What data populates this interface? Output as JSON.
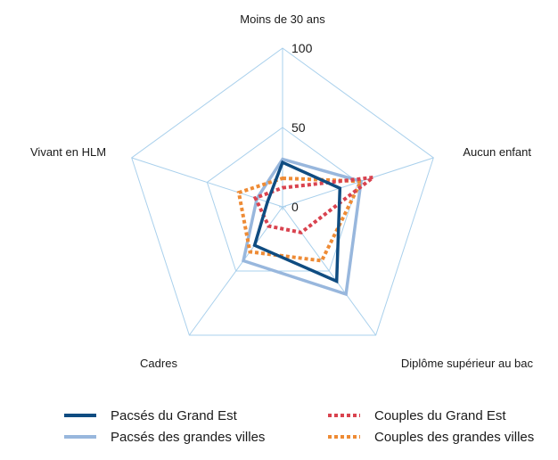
{
  "chart_data": {
    "type": "radar",
    "axes": [
      "Moins de 30 ans",
      "Aucun enfant",
      "Diplôme supérieur au bac",
      "Cadres",
      "Vivant en HLM"
    ],
    "ticks": [
      0,
      50,
      100
    ],
    "range": [
      0,
      100
    ],
    "grid": true,
    "legend_position": "bottom",
    "series": [
      {
        "name": "Pacsés du Grand Est",
        "values": [
          28,
          38,
          58,
          30,
          10
        ],
        "color": "#0f4c81",
        "style": "solid"
      },
      {
        "name": "Pacsés des grandes villes",
        "values": [
          30,
          52,
          68,
          42,
          17
        ],
        "color": "#98b7dd",
        "style": "solid"
      },
      {
        "name": "Couples du Grand Est",
        "values": [
          12,
          60,
          20,
          15,
          18
        ],
        "color": "#d9434f",
        "style": "dotted"
      },
      {
        "name": "Couples des grandes villes",
        "values": [
          18,
          52,
          42,
          35,
          29
        ],
        "color": "#ee8b35",
        "style": "dotted"
      }
    ]
  }
}
